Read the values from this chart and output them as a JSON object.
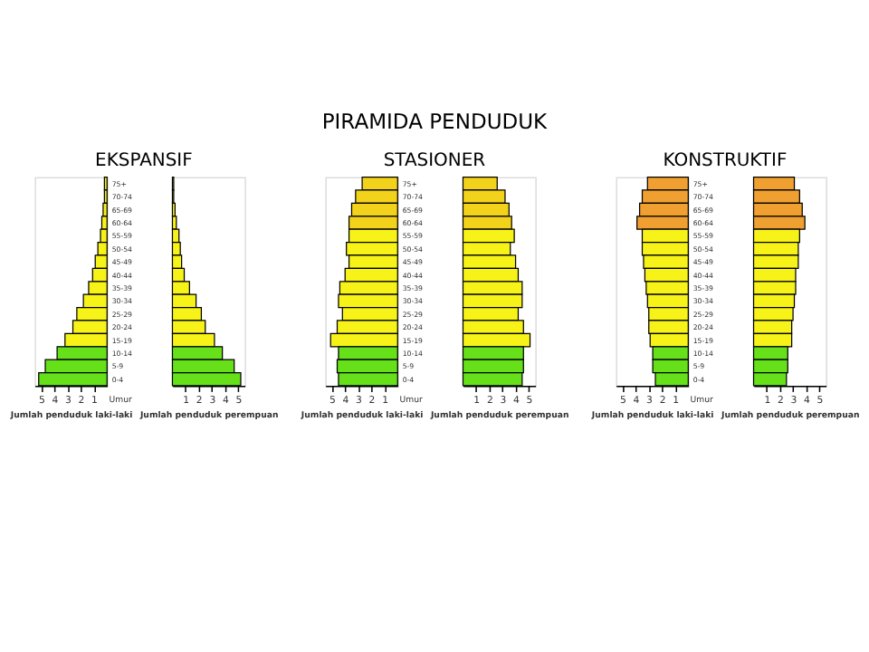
{
  "chart_data": [
    {
      "type": "bar",
      "orientation": "horizontal",
      "title": "EKSPANSIF",
      "annotations": [
        "PIRAMIDA PENDUDUK"
      ],
      "categories": [
        "75+",
        "70-74",
        "65-69",
        "60-64",
        "55-59",
        "50-54",
        "45-49",
        "40-44",
        "35-39",
        "30-34",
        "25-29",
        "20-24",
        "15-19",
        "10-14",
        "5-9",
        "0-4"
      ],
      "values": [
        0.2,
        0.2,
        0.3,
        0.4,
        0.5,
        0.7,
        0.9,
        1.1,
        1.4,
        1.8,
        2.3,
        2.6,
        3.2,
        3.8,
        4.7,
        5.2
      ],
      "colors": [
        "#f7f217",
        "#f7f217",
        "#f7f217",
        "#f7f217",
        "#f7f217",
        "#f7f217",
        "#f7f217",
        "#f7f217",
        "#f7f217",
        "#f7f217",
        "#f7f217",
        "#f7f217",
        "#f7f217",
        "#66e019",
        "#66e019",
        "#66e019"
      ],
      "xlim": [
        5.5,
        0
      ],
      "xticks": [
        1,
        2,
        3,
        4,
        5
      ],
      "xlabel": "Jumlah penduduk laki-laki",
      "ylabel": "Umur"
    },
    {
      "type": "bar",
      "orientation": "horizontal",
      "tick_labels": "x",
      "categories": [
        null,
        null,
        null,
        null,
        null,
        null,
        null,
        null,
        null,
        null,
        null,
        null,
        null,
        null,
        null,
        null
      ],
      "values": [
        0.1,
        0.1,
        0.2,
        0.3,
        0.5,
        0.6,
        0.7,
        0.9,
        1.3,
        1.8,
        2.2,
        2.5,
        3.2,
        3.8,
        4.7,
        5.2
      ],
      "colors": [
        "#f7f217",
        "#f7f217",
        "#f7f217",
        "#f7f217",
        "#f7f217",
        "#f7f217",
        "#f7f217",
        "#f7f217",
        "#f7f217",
        "#f7f217",
        "#f7f217",
        "#f7f217",
        "#f7f217",
        "#66e019",
        "#66e019",
        "#66e019"
      ],
      "xlim": [
        0,
        5.5
      ],
      "xticks": [
        1,
        2,
        3,
        4,
        5
      ],
      "xlabel": "Jumlah penduduk perempuan"
    },
    {
      "type": "bar",
      "orientation": "horizontal",
      "title": "STASIONER",
      "categories": [
        "75+",
        "70-74",
        "65-69",
        "60-64",
        "55-59",
        "50-54",
        "45-49",
        "40-44",
        "35-39",
        "30-34",
        "25-29",
        "20-24",
        "15-19",
        "10-14",
        "5-9",
        "0-4"
      ],
      "values": [
        2.7,
        3.2,
        3.5,
        3.7,
        3.7,
        3.9,
        3.7,
        4.0,
        4.4,
        4.5,
        4.2,
        4.6,
        5.1,
        4.5,
        4.6,
        4.5
      ],
      "colors": [
        "#f2d21a",
        "#f2d21a",
        "#f2d21a",
        "#f2d21a",
        "#f7f217",
        "#f7f217",
        "#f7f217",
        "#f7f217",
        "#f7f217",
        "#f7f217",
        "#f7f217",
        "#f7f217",
        "#f7f217",
        "#66e019",
        "#66e019",
        "#66e019"
      ],
      "xlim": [
        5.5,
        0
      ],
      "xticks": [
        1,
        2,
        3,
        4,
        5
      ],
      "xlabel": "Jumlah penduduk laki-laki",
      "ylabel": "Umur"
    },
    {
      "type": "bar",
      "orientation": "horizontal",
      "tick_labels": "x",
      "categories": [
        null,
        null,
        null,
        null,
        null,
        null,
        null,
        null,
        null,
        null,
        null,
        null,
        null,
        null,
        null,
        null
      ],
      "values": [
        2.6,
        3.2,
        3.5,
        3.7,
        3.9,
        3.6,
        4.0,
        4.2,
        4.5,
        4.5,
        4.2,
        4.6,
        5.1,
        4.6,
        4.6,
        4.5
      ],
      "colors": [
        "#f2d21a",
        "#f2d21a",
        "#f2d21a",
        "#f2d21a",
        "#f7f217",
        "#f7f217",
        "#f7f217",
        "#f7f217",
        "#f7f217",
        "#f7f217",
        "#f7f217",
        "#f7f217",
        "#f7f217",
        "#66e019",
        "#66e019",
        "#66e019"
      ],
      "xlim": [
        0,
        5.5
      ],
      "xticks": [
        1,
        2,
        3,
        4,
        5
      ],
      "xlabel": "Jumlah penduduk perempuan"
    },
    {
      "type": "bar",
      "orientation": "horizontal",
      "title": "KONSTRUKTIF",
      "categories": [
        "75+",
        "70-74",
        "65-69",
        "60-64",
        "55-59",
        "50-54",
        "45-49",
        "40-44",
        "35-39",
        "30-34",
        "25-29",
        "20-24",
        "15-19",
        "10-14",
        "5-9",
        "0-4"
      ],
      "values": [
        3.1,
        3.5,
        3.7,
        3.9,
        3.5,
        3.5,
        3.4,
        3.3,
        3.2,
        3.1,
        3.0,
        3.0,
        2.9,
        2.7,
        2.7,
        2.5
      ],
      "colors": [
        "#f0a030",
        "#f0a030",
        "#f0a030",
        "#f0a030",
        "#f7f217",
        "#f7f217",
        "#f7f217",
        "#f7f217",
        "#f7f217",
        "#f7f217",
        "#f7f217",
        "#f7f217",
        "#f7f217",
        "#66e019",
        "#66e019",
        "#66e019"
      ],
      "xlim": [
        5.5,
        0
      ],
      "xticks": [
        1,
        2,
        3,
        4,
        5
      ],
      "xlabel": "Jumlah penduduk laki-laki",
      "ylabel": "Umur"
    },
    {
      "type": "bar",
      "orientation": "horizontal",
      "tick_labels": "x",
      "categories": [
        null,
        null,
        null,
        null,
        null,
        null,
        null,
        null,
        null,
        null,
        null,
        null,
        null,
        null,
        null,
        null
      ],
      "values": [
        3.1,
        3.5,
        3.7,
        3.9,
        3.5,
        3.4,
        3.4,
        3.2,
        3.2,
        3.1,
        3.0,
        2.9,
        2.9,
        2.6,
        2.6,
        2.5
      ],
      "colors": [
        "#f0a030",
        "#f0a030",
        "#f0a030",
        "#f0a030",
        "#f7f217",
        "#f7f217",
        "#f7f217",
        "#f7f217",
        "#f7f217",
        "#f7f217",
        "#f7f217",
        "#f7f217",
        "#f7f217",
        "#66e019",
        "#66e019",
        "#66e019"
      ],
      "xlim": [
        0,
        5.5
      ],
      "xticks": [
        1,
        2,
        3,
        4,
        5
      ],
      "xlabel": "Jumlah penduduk perempuan"
    }
  ]
}
